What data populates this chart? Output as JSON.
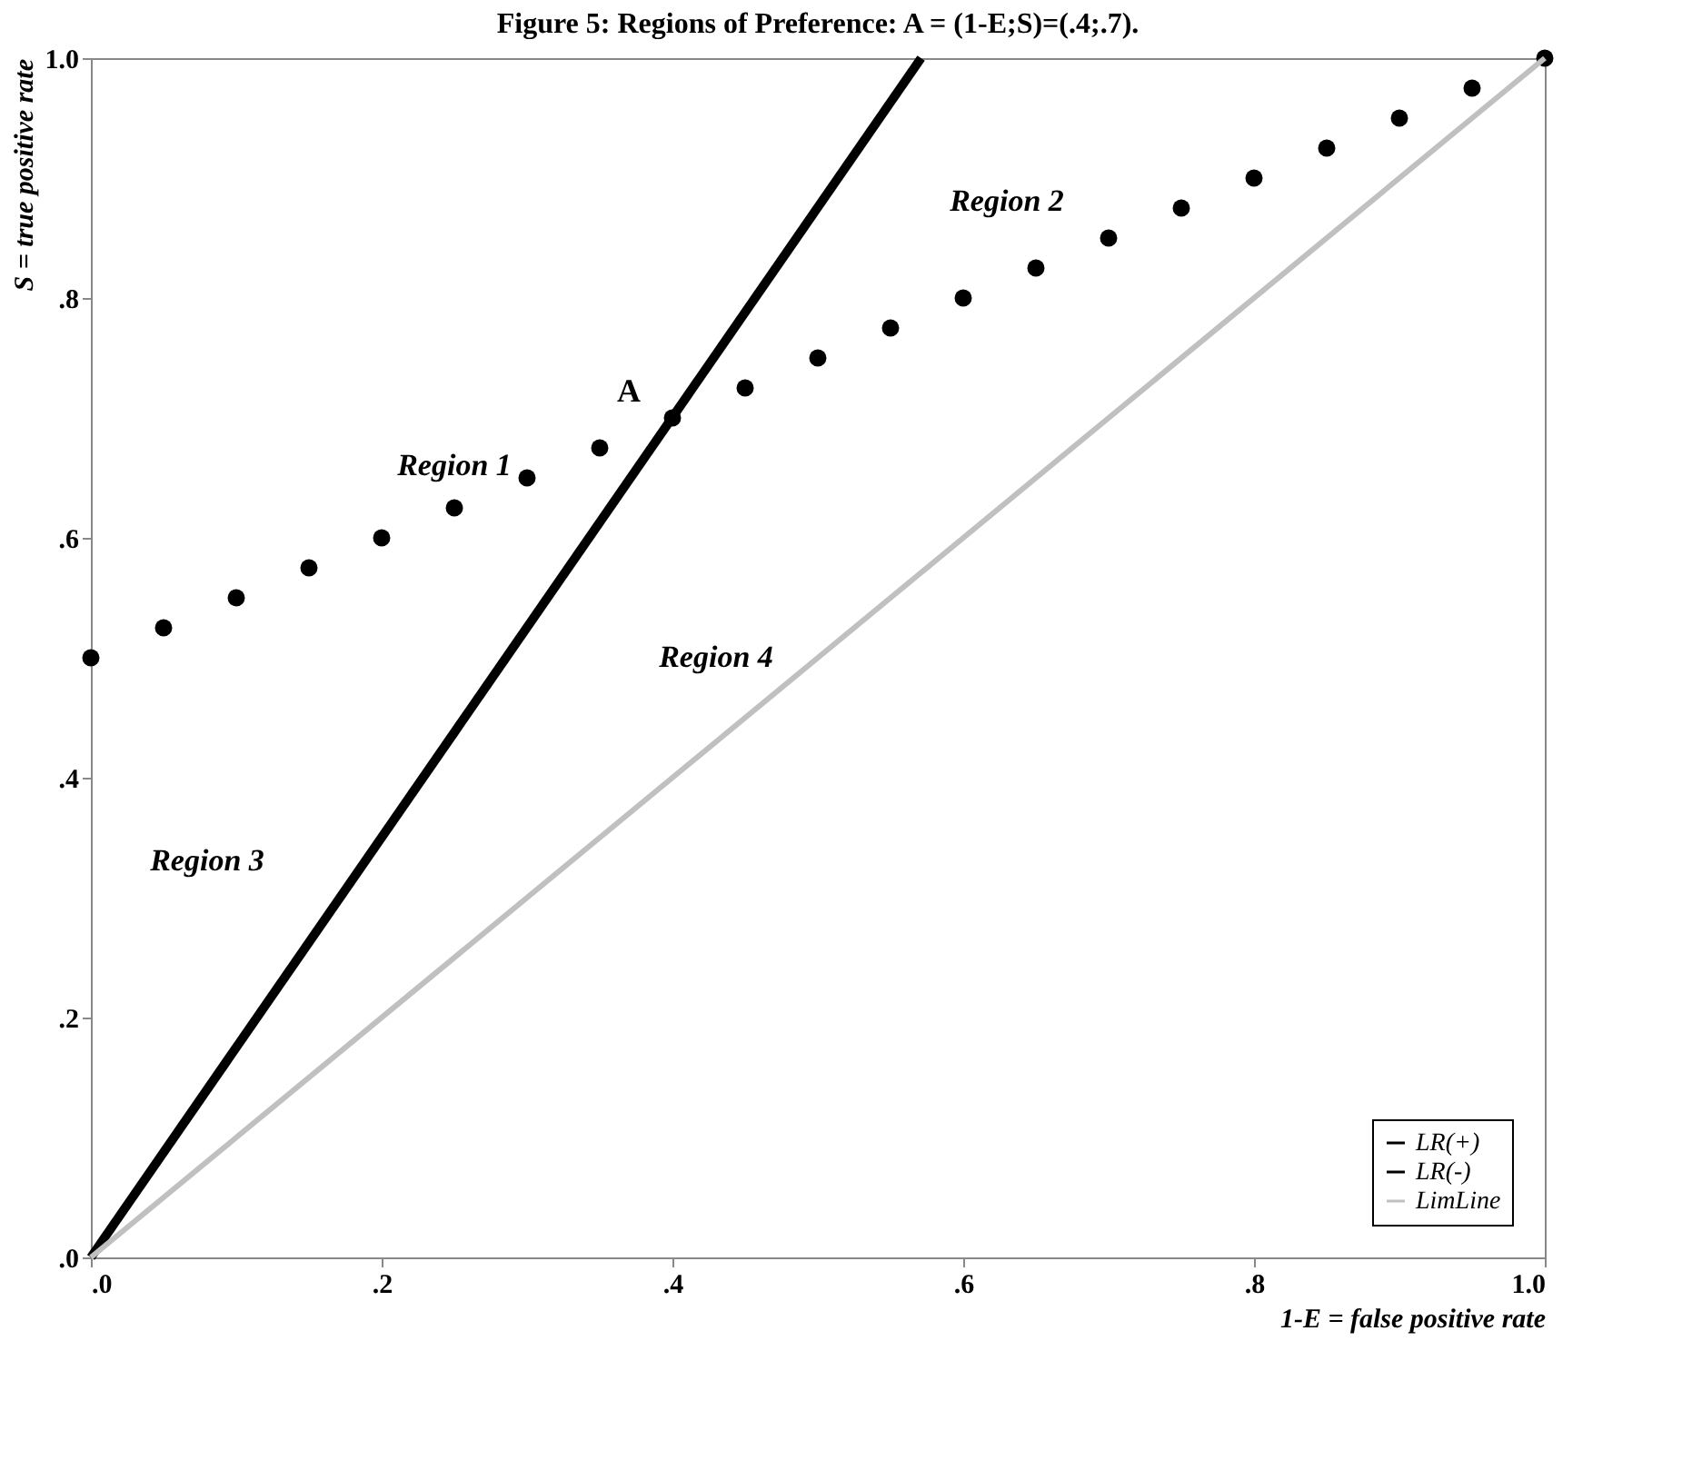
{
  "chart_data": {
    "type": "line",
    "title": "Figure 5: Regions of Preference: A = (1-E;S)=(.4;.7).",
    "xlabel": "1-E = false positive rate",
    "ylabel": "S = true positive rate",
    "xlim": [
      0,
      1
    ],
    "ylim": [
      0,
      1
    ],
    "xticks": [
      {
        "value": 0,
        "label": ".0"
      },
      {
        "value": 0.2,
        "label": ".2"
      },
      {
        "value": 0.4,
        "label": ".4"
      },
      {
        "value": 0.6,
        "label": ".6"
      },
      {
        "value": 0.8,
        "label": ".8"
      },
      {
        "value": 1,
        "label": "1.0"
      }
    ],
    "yticks": [
      {
        "value": 0,
        "label": ".0"
      },
      {
        "value": 0.2,
        "label": ".2"
      },
      {
        "value": 0.4,
        "label": ".4"
      },
      {
        "value": 0.6,
        "label": ".6"
      },
      {
        "value": 0.8,
        "label": ".8"
      },
      {
        "value": 1,
        "label": "1.0"
      }
    ],
    "grid": false,
    "legend": "bottom right",
    "series": [
      {
        "name": "LR(+)",
        "color": "#000000",
        "x": [
          0,
          0.571
        ],
        "values": [
          0,
          1
        ]
      },
      {
        "name": "LR(-)",
        "type": "scatter",
        "color": "#000000",
        "x": [
          0,
          0.05,
          0.1,
          0.15,
          0.2,
          0.25,
          0.3,
          0.35,
          0.4,
          0.45,
          0.5,
          0.55,
          0.6,
          0.65,
          0.7,
          0.75,
          0.8,
          0.85,
          0.9,
          0.95,
          1
        ],
        "values": [
          0.5,
          0.525,
          0.55,
          0.575,
          0.6,
          0.625,
          0.65,
          0.675,
          0.7,
          0.725,
          0.75,
          0.775,
          0.8,
          0.825,
          0.85,
          0.875,
          0.9,
          0.925,
          0.95,
          0.975,
          1
        ]
      },
      {
        "name": "LimLine",
        "color": "#c0c0c0",
        "x": [
          0,
          1
        ],
        "values": [
          0,
          1
        ]
      }
    ],
    "annotations": [
      "Region 1",
      {
        "text": "A",
        "x": 0.4,
        "y": 0.7
      },
      "Region 2",
      "Region 3",
      "Region 4"
    ]
  }
}
